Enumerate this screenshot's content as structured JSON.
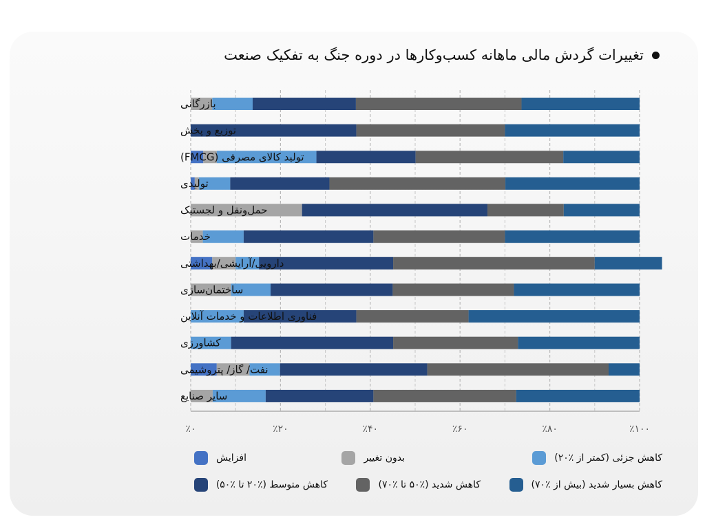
{
  "title": "تغییرات گردش مالی ماهانه کسب‌وکارها در دوره جنگ به تفکیک صنعت",
  "chart_data": {
    "type": "bar",
    "orientation": "horizontal",
    "stacked": true,
    "title": "تغییرات گردش مالی ماهانه کسب‌وکارها در دوره جنگ به تفکیک صنعت",
    "xlabel": "",
    "ylabel": "",
    "xlim": [
      0,
      100
    ],
    "x_ticks": [
      "٪۰",
      "٪۲۰",
      "٪۴۰",
      "٪۶۰",
      "٪۸۰",
      "٪۱۰۰"
    ],
    "grid": "vertical-dashed",
    "legend_position": "bottom",
    "categories": [
      "بازرگانی",
      "توزیع و پخش",
      "تولید کالای مصرفی (FMCG)",
      "تولیدی",
      "حمل‌ونقل و لجستیک",
      "خدمات",
      "دارویی/آرایشی/بهداشتی",
      "ساختمان‌سازی",
      "فناوری اطلاعات و خدمات آنلاین",
      "کشاورزی",
      "نفت/ گاز/ پتروشیمی",
      "سایر صنایع"
    ],
    "series": [
      {
        "name": "افزایش",
        "color": "#4472c4",
        "values": [
          0,
          0,
          2.8,
          0.9,
          0,
          0,
          4.8,
          0,
          0,
          0,
          5.8,
          0
        ]
      },
      {
        "name": "بدون تغییر",
        "color": "#a5a5a5",
        "values": [
          4.8,
          0,
          3.0,
          0.9,
          24.8,
          2.7,
          5.2,
          9.0,
          0,
          0,
          7.3,
          4.9
        ]
      },
      {
        "name": "کاهش جزئی (کمتر از ٪۲۰)",
        "color": "#5b9bd5",
        "values": [
          9.0,
          0,
          22.2,
          7.0,
          0,
          9.1,
          5.2,
          8.8,
          11.8,
          9.0,
          6.8,
          11.8
        ]
      },
      {
        "name": "کاهش متوسط (٪۲۰ تا ٪۵۰)",
        "color": "#264478",
        "values": [
          23.0,
          36.9,
          22.1,
          22.1,
          41.3,
          28.9,
          29.9,
          27.2,
          25.1,
          36.1,
          32.8,
          24.0
        ]
      },
      {
        "name": "کاهش شدید (٪۵۰ تا ٪۷۰)",
        "color": "#636363",
        "values": [
          36.9,
          33.1,
          32.9,
          39.2,
          17.0,
          29.3,
          44.9,
          27.0,
          25.0,
          27.8,
          40.4,
          31.8
        ]
      },
      {
        "name": "کاهش بسیار شدید (بیش از ٪۷۰)",
        "color": "#255e91",
        "values": [
          26.3,
          30.0,
          17.0,
          29.9,
          16.9,
          30.0,
          15.0,
          28.0,
          38.1,
          27.1,
          6.9,
          27.5
        ]
      }
    ]
  },
  "legend": {
    "items": [
      {
        "label": "افزایش",
        "color": "#4472c4"
      },
      {
        "label": "بدون تغییر",
        "color": "#a5a5a5"
      },
      {
        "label": "کاهش جزئی (کمتر از ٪۲۰)",
        "color": "#5b9bd5"
      },
      {
        "label": "کاهش متوسط (٪۲۰ تا ٪۵۰)",
        "color": "#264478"
      },
      {
        "label": "کاهش شدید (٪۵۰ تا ٪۷۰)",
        "color": "#636363"
      },
      {
        "label": "کاهش بسیار شدید (بیش از ٪۷۰)",
        "color": "#255e91"
      }
    ]
  }
}
